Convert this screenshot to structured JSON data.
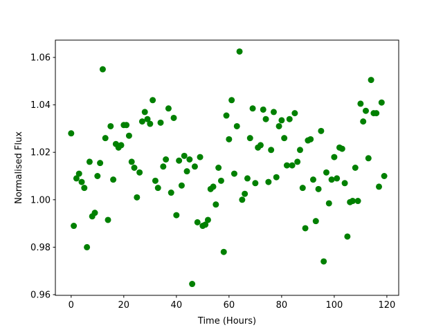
{
  "chart_data": {
    "type": "scatter",
    "title": "",
    "xlabel": "Time (Hours)",
    "ylabel": "Normalised Flux",
    "xlim": [
      -6,
      124.5
    ],
    "ylim": [
      0.9597,
      1.0673
    ],
    "xticks": [
      0,
      20,
      40,
      60,
      80,
      100,
      120
    ],
    "xtick_labels": [
      "0",
      "20",
      "40",
      "60",
      "80",
      "100",
      "120"
    ],
    "yticks": [
      0.96,
      0.98,
      1.0,
      1.02,
      1.04,
      1.06
    ],
    "ytick_labels": [
      "0.96",
      "0.98",
      "1.00",
      "1.02",
      "1.04",
      "1.06"
    ],
    "grid": false,
    "marker_color": "#008000",
    "series": [
      {
        "x": [
          0,
          1,
          2,
          3,
          4,
          5,
          6,
          7,
          8,
          9,
          10,
          11,
          12,
          13,
          14,
          15,
          16,
          17,
          18,
          19,
          20,
          21,
          22,
          23,
          24,
          25,
          26,
          27,
          28,
          29,
          30,
          31,
          32,
          33,
          34,
          35,
          36,
          37,
          38,
          39,
          40,
          41,
          42,
          43,
          44,
          45,
          46,
          47,
          48,
          49,
          50,
          51,
          52,
          53,
          54,
          55,
          56,
          57,
          58,
          59,
          60,
          61,
          62,
          63,
          64,
          65,
          66,
          67,
          68,
          69,
          70,
          71,
          72,
          73,
          74,
          75,
          76,
          77,
          78,
          79,
          80,
          81,
          82,
          83,
          84,
          85,
          86,
          87,
          88,
          89,
          90,
          91,
          92,
          93,
          94,
          95,
          96,
          97,
          98,
          99,
          100,
          101,
          102,
          103,
          104,
          105,
          106,
          107,
          108,
          109,
          110,
          111,
          112,
          113,
          114,
          115,
          116,
          117,
          118,
          119
        ],
        "y": [
          1.028,
          0.989,
          1.009,
          1.011,
          1.0075,
          1.005,
          0.98,
          1.016,
          0.993,
          0.9945,
          1.01,
          1.0155,
          1.055,
          1.026,
          0.9915,
          1.031,
          1.0085,
          1.0235,
          1.022,
          1.023,
          1.0315,
          1.0315,
          1.027,
          1.016,
          1.0135,
          1.001,
          1.0115,
          1.033,
          1.037,
          1.034,
          1.032,
          1.042,
          1.008,
          1.005,
          1.0325,
          1.014,
          1.017,
          1.0385,
          1.003,
          1.0345,
          0.9935,
          1.0165,
          1.006,
          1.0185,
          1.012,
          1.017,
          0.9645,
          1.014,
          0.9905,
          1.018,
          0.989,
          0.9895,
          0.9915,
          1.0045,
          1.0055,
          0.998,
          1.0135,
          1.008,
          0.978,
          1.0355,
          1.0255,
          1.042,
          1.011,
          1.031,
          1.0625,
          1.0,
          1.0025,
          1.009,
          1.026,
          1.0385,
          1.007,
          1.022,
          1.023,
          1.038,
          1.034,
          1.0075,
          1.021,
          1.037,
          1.0095,
          1.031,
          1.0335,
          1.026,
          1.0145,
          1.034,
          1.0145,
          1.0365,
          1.016,
          1.021,
          1.005,
          0.988,
          1.025,
          1.0255,
          1.0085,
          0.991,
          1.0045,
          1.029,
          0.974,
          1.0115,
          0.9985,
          1.0085,
          1.018,
          1.009,
          1.022,
          1.0215,
          1.007,
          0.9845,
          0.999,
          0.9995,
          1.0135,
          0.9995,
          1.0405,
          1.033,
          1.0375,
          1.0175,
          1.0505,
          1.0365,
          1.0365,
          1.0055,
          1.041,
          1.01
        ]
      }
    ]
  }
}
